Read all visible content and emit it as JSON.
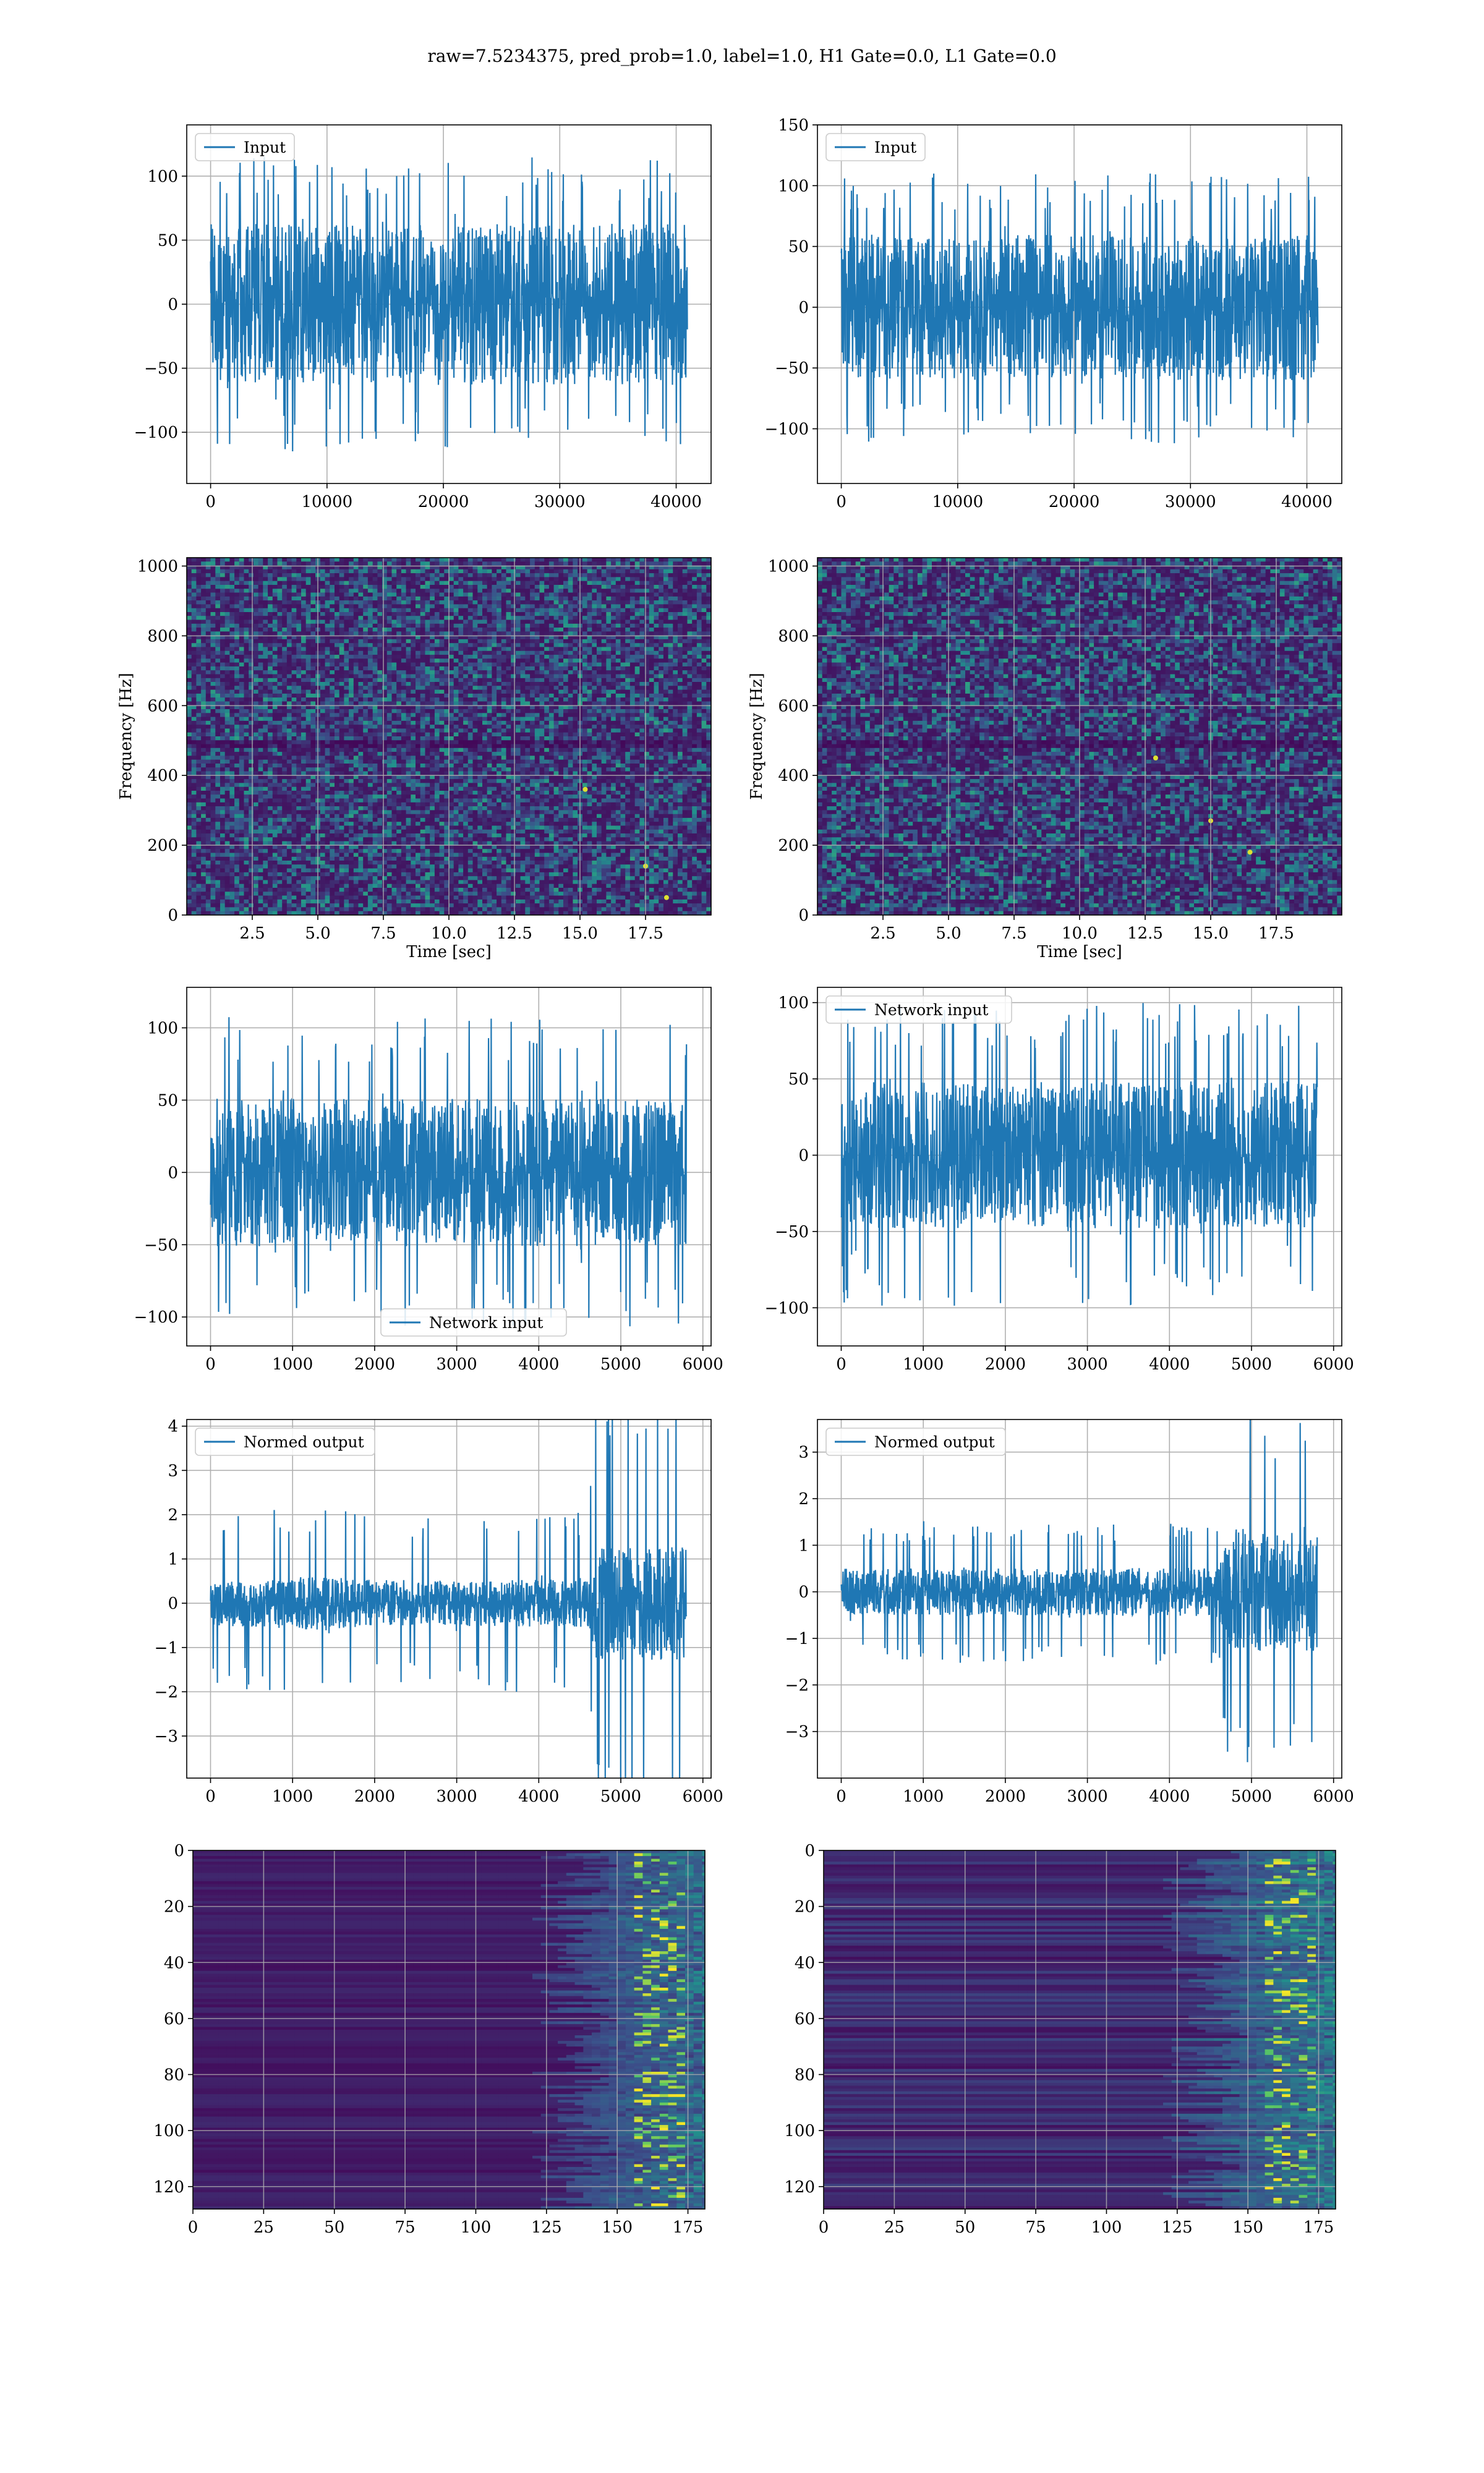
{
  "figure": {
    "title": "raw=7.5234375, pred_prob=1.0, label=1.0, H1 Gate=0.0, L1 Gate=0.0"
  },
  "colors": {
    "line": "#1f77b4",
    "grid": "#b0b0b0"
  },
  "chart_data": [
    {
      "id": "r1c1",
      "type": "line",
      "series": [
        {
          "name": "Input"
        }
      ],
      "legend": "upper left",
      "xlim": [
        -2050,
        43000
      ],
      "ylim": [
        -140,
        140
      ],
      "xticks": [
        0,
        10000,
        20000,
        30000,
        40000
      ],
      "xtick_labels": [
        "0",
        "10000",
        "20000",
        "30000",
        "40000"
      ],
      "yticks": [
        -100,
        -50,
        0,
        50,
        100
      ],
      "ytick_labels": [
        "−100",
        "−50",
        "0",
        "50",
        "100"
      ],
      "xlabel": "",
      "ylabel": "",
      "grid": true,
      "signal": {
        "n": 40960,
        "bulk": 42,
        "peak": 115,
        "env": [
          [
            0,
            1
          ]
        ]
      }
    },
    {
      "id": "r1c2",
      "type": "line",
      "series": [
        {
          "name": "Input"
        }
      ],
      "legend": "upper left",
      "xlim": [
        -2050,
        43000
      ],
      "ylim": [
        -145,
        150
      ],
      "xticks": [
        0,
        10000,
        20000,
        30000,
        40000
      ],
      "xtick_labels": [
        "0",
        "10000",
        "20000",
        "30000",
        "40000"
      ],
      "yticks": [
        -100,
        -50,
        0,
        50,
        100,
        150
      ],
      "ytick_labels": [
        "−100",
        "−50",
        "0",
        "50",
        "100",
        "150"
      ],
      "xlabel": "",
      "ylabel": "",
      "grid": true,
      "signal": {
        "n": 40960,
        "bulk": 40,
        "peak": 112,
        "env": [
          [
            0,
            1
          ]
        ]
      }
    },
    {
      "id": "r2c1",
      "type": "heatmap",
      "colormap": "viridis",
      "xlim": [
        0,
        20
      ],
      "ylim": [
        0,
        1024
      ],
      "xticks": [
        2.5,
        5,
        7.5,
        10,
        12.5,
        15,
        17.5
      ],
      "xtick_labels": [
        "2.5",
        "5.0",
        "7.5",
        "10.0",
        "12.5",
        "15.0",
        "17.5"
      ],
      "yticks": [
        0,
        200,
        400,
        600,
        800,
        1000
      ],
      "ytick_labels": [
        "0",
        "200",
        "400",
        "600",
        "800",
        "1000"
      ],
      "xlabel": "Time [sec]",
      "ylabel": "Frequency [Hz]",
      "grid": true,
      "bright_spots": [
        [
          18.3,
          50
        ],
        [
          17.5,
          140
        ],
        [
          15.2,
          360
        ]
      ]
    },
    {
      "id": "r2c2",
      "type": "heatmap",
      "colormap": "viridis",
      "xlim": [
        0,
        20
      ],
      "ylim": [
        0,
        1024
      ],
      "xticks": [
        2.5,
        5,
        7.5,
        10,
        12.5,
        15,
        17.5
      ],
      "xtick_labels": [
        "2.5",
        "5.0",
        "7.5",
        "10.0",
        "12.5",
        "15.0",
        "17.5"
      ],
      "yticks": [
        0,
        200,
        400,
        600,
        800,
        1000
      ],
      "ytick_labels": [
        "0",
        "200",
        "400",
        "600",
        "800",
        "1000"
      ],
      "xlabel": "Time [sec]",
      "ylabel": "Frequency [Hz]",
      "grid": true,
      "bright_spots": [
        [
          12.9,
          450
        ],
        [
          15.0,
          270
        ],
        [
          16.5,
          180
        ]
      ]
    },
    {
      "id": "r3c1",
      "type": "line",
      "series": [
        {
          "name": "Network input"
        }
      ],
      "legend": "lower center",
      "xlim": [
        -290,
        6100
      ],
      "ylim": [
        -120,
        128
      ],
      "xticks": [
        0,
        1000,
        2000,
        3000,
        4000,
        5000,
        6000
      ],
      "xtick_labels": [
        "0",
        "1000",
        "2000",
        "3000",
        "4000",
        "5000",
        "6000"
      ],
      "yticks": [
        -100,
        -50,
        0,
        50,
        100
      ],
      "ytick_labels": [
        "−100",
        "−50",
        "0",
        "50",
        "100"
      ],
      "xlabel": "",
      "ylabel": "",
      "grid": true,
      "signal": {
        "n": 5800,
        "bulk": 34,
        "peak": 108,
        "env": [
          [
            0,
            1
          ]
        ]
      }
    },
    {
      "id": "r3c2",
      "type": "line",
      "series": [
        {
          "name": "Network input"
        }
      ],
      "legend": "upper left",
      "xlim": [
        -290,
        6100
      ],
      "ylim": [
        -125,
        110
      ],
      "xticks": [
        0,
        1000,
        2000,
        3000,
        4000,
        5000,
        6000
      ],
      "xtick_labels": [
        "0",
        "1000",
        "2000",
        "3000",
        "4000",
        "5000",
        "6000"
      ],
      "yticks": [
        -100,
        -50,
        0,
        50,
        100
      ],
      "ytick_labels": [
        "−100",
        "−50",
        "0",
        "50",
        "100"
      ],
      "xlabel": "",
      "ylabel": "",
      "grid": true,
      "signal": {
        "n": 5800,
        "bulk": 32,
        "peak": 100,
        "env": [
          [
            0,
            1
          ]
        ]
      }
    },
    {
      "id": "r4c1",
      "type": "line",
      "series": [
        {
          "name": "Normed output"
        }
      ],
      "legend": "upper left",
      "xlim": [
        -290,
        6100
      ],
      "ylim": [
        -3.95,
        4.15
      ],
      "xticks": [
        0,
        1000,
        2000,
        3000,
        4000,
        5000,
        6000
      ],
      "xtick_labels": [
        "0",
        "1000",
        "2000",
        "3000",
        "4000",
        "5000",
        "6000"
      ],
      "yticks": [
        -3,
        -2,
        -1,
        0,
        1,
        2,
        3,
        4
      ],
      "ytick_labels": [
        "−3",
        "−2",
        "−1",
        "0",
        "1",
        "2",
        "3",
        "4"
      ],
      "xlabel": "",
      "ylabel": "",
      "grid": true,
      "signal": {
        "n": 5800,
        "bulk": 0.33,
        "peak": 1.9,
        "env": [
          [
            0,
            1
          ],
          [
            1500,
            1.25
          ],
          [
            2100,
            1
          ],
          [
            4600,
            1.1
          ],
          [
            4700,
            2.6
          ],
          [
            5850,
            2.6
          ]
        ]
      }
    },
    {
      "id": "r4c2",
      "type": "line",
      "series": [
        {
          "name": "Normed output"
        }
      ],
      "legend": "upper left",
      "xlim": [
        -290,
        6100
      ],
      "ylim": [
        -4.0,
        3.7
      ],
      "xticks": [
        0,
        1000,
        2000,
        3000,
        4000,
        5000,
        6000
      ],
      "xtick_labels": [
        "0",
        "1000",
        "2000",
        "3000",
        "4000",
        "5000",
        "6000"
      ],
      "yticks": [
        -3,
        -2,
        -1,
        0,
        1,
        2,
        3
      ],
      "ytick_labels": [
        "−3",
        "−2",
        "−1",
        "0",
        "1",
        "2",
        "3"
      ],
      "xlabel": "",
      "ylabel": "",
      "grid": true,
      "signal": {
        "n": 5800,
        "bulk": 0.33,
        "peak": 1.5,
        "env": [
          [
            0,
            1
          ],
          [
            4600,
            1.05
          ],
          [
            4700,
            2.6
          ],
          [
            5850,
            2.6
          ]
        ]
      }
    },
    {
      "id": "r5c1",
      "type": "heatmap",
      "colormap": "viridis",
      "xlim": [
        0,
        181
      ],
      "ylim": [
        128,
        0
      ],
      "xticks": [
        0,
        25,
        50,
        75,
        100,
        125,
        150,
        175
      ],
      "xtick_labels": [
        "0",
        "25",
        "50",
        "75",
        "100",
        "125",
        "150",
        "175"
      ],
      "yticks": [
        0,
        20,
        40,
        60,
        80,
        100,
        120
      ],
      "ytick_labels": [
        "0",
        "20",
        "40",
        "60",
        "80",
        "100",
        "120"
      ],
      "xlabel": "",
      "ylabel": "",
      "grid": true
    },
    {
      "id": "r5c2",
      "type": "heatmap",
      "colormap": "viridis",
      "xlim": [
        0,
        181
      ],
      "ylim": [
        128,
        0
      ],
      "xticks": [
        0,
        25,
        50,
        75,
        100,
        125,
        150,
        175
      ],
      "xtick_labels": [
        "0",
        "25",
        "50",
        "75",
        "100",
        "125",
        "150",
        "175"
      ],
      "yticks": [
        0,
        20,
        40,
        60,
        80,
        100,
        120
      ],
      "ytick_labels": [
        "0",
        "20",
        "40",
        "60",
        "80",
        "100",
        "120"
      ],
      "xlabel": "",
      "ylabel": "",
      "grid": true
    }
  ]
}
